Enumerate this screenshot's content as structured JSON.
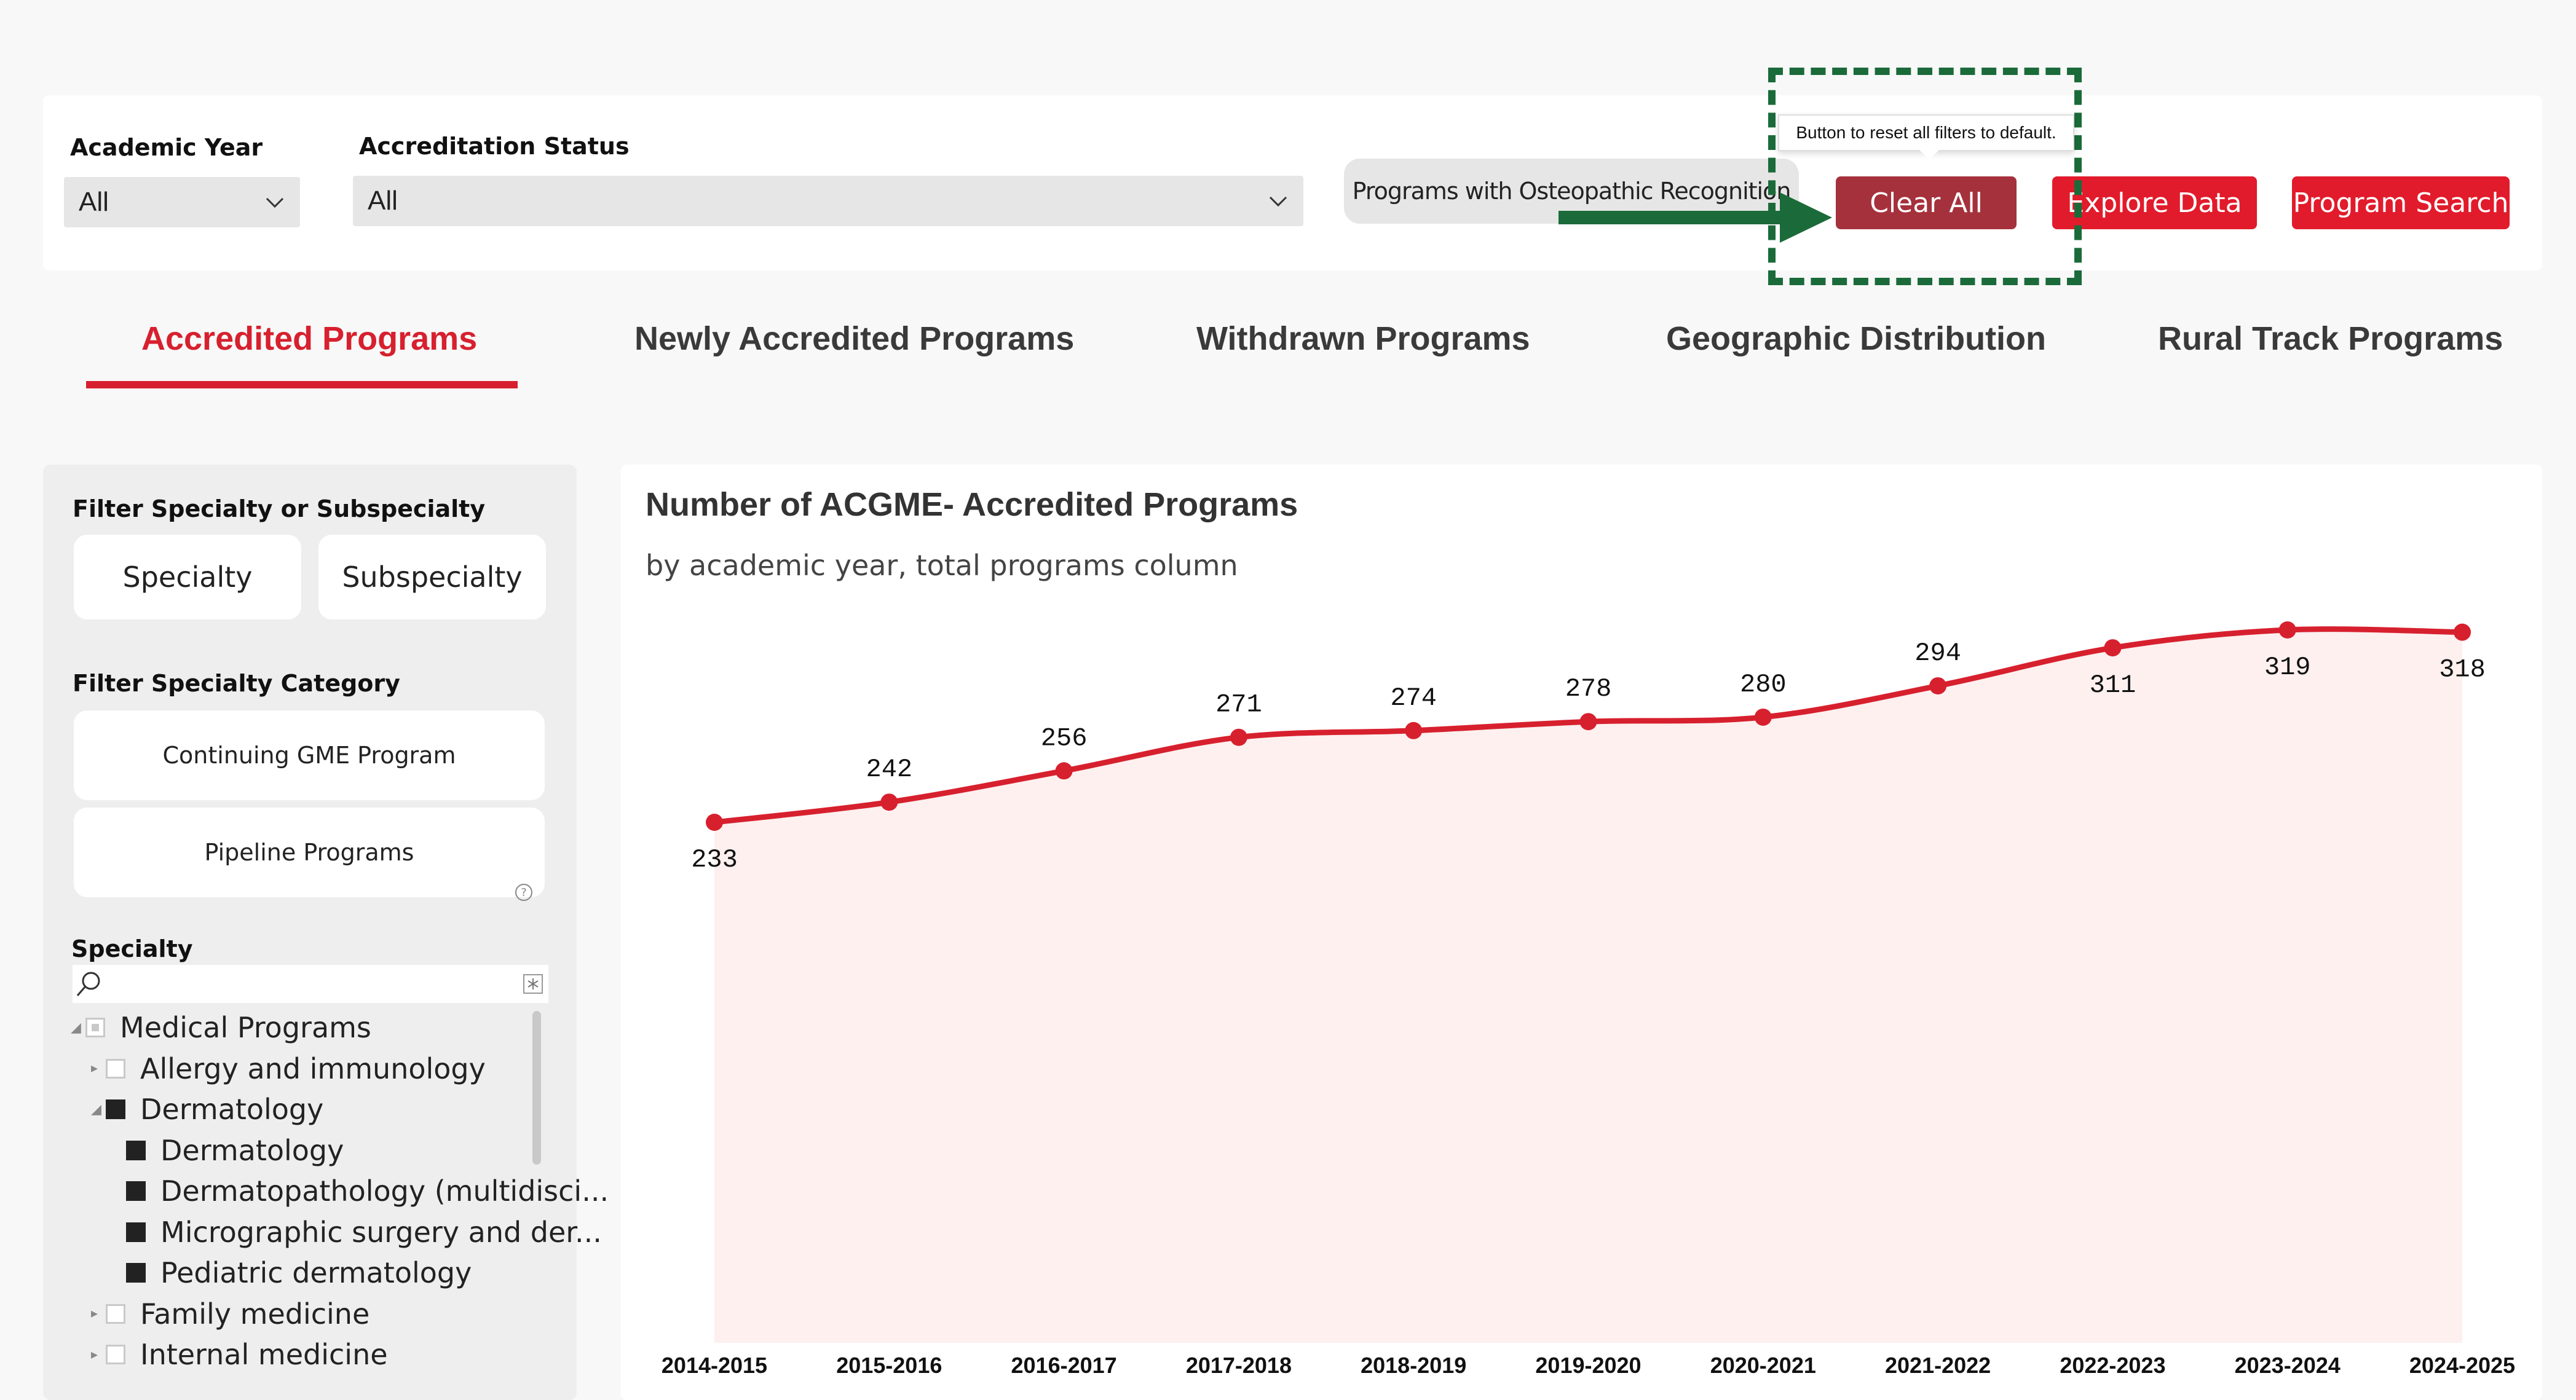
{
  "filters": {
    "academic_year": {
      "label": "Academic Year",
      "value": "All"
    },
    "accreditation_status": {
      "label": "Accreditation Status",
      "value": "All"
    },
    "osteopathic_button": "Programs with Osteopathic Recognition"
  },
  "buttons": {
    "clear_all": "Clear All",
    "explore_data": "Explore Data",
    "program_search": "Program Search",
    "clear_all_tooltip": "Button to reset all filters to default."
  },
  "tabs": [
    {
      "label": "Accredited Programs",
      "active": true
    },
    {
      "label": "Newly Accredited Programs",
      "active": false
    },
    {
      "label": "Withdrawn Programs",
      "active": false
    },
    {
      "label": "Geographic Distribution",
      "active": false
    },
    {
      "label": "Rural Track Programs",
      "active": false
    }
  ],
  "left_panel": {
    "filter_specialty_heading": "Filter Specialty or Subspecialty",
    "specialty_button": "Specialty",
    "subspecialty_button": "Subspecialty",
    "filter_category_heading": "Filter Specialty Category",
    "continuing_gme_button": "Continuing GME Program",
    "pipeline_button": "Pipeline Programs",
    "specialty_heading": "Specialty",
    "tree": [
      {
        "label": "Medical Programs",
        "level": 0,
        "state": "partial",
        "expander": "open"
      },
      {
        "label": "Allergy and immunology",
        "level": 1,
        "state": "empty",
        "expander": "closed"
      },
      {
        "label": "Dermatology",
        "level": 1,
        "state": "full",
        "expander": "open"
      },
      {
        "label": "Dermatology",
        "level": 2,
        "state": "full",
        "expander": "none"
      },
      {
        "label": "Dermatopathology (multidisci...",
        "level": 2,
        "state": "full",
        "expander": "none"
      },
      {
        "label": "Micrographic surgery and der...",
        "level": 2,
        "state": "full",
        "expander": "none"
      },
      {
        "label": "Pediatric dermatology",
        "level": 2,
        "state": "full",
        "expander": "none"
      },
      {
        "label": "Family medicine",
        "level": 1,
        "state": "empty",
        "expander": "closed"
      },
      {
        "label": "Internal medicine",
        "level": 1,
        "state": "empty",
        "expander": "closed"
      }
    ]
  },
  "colors": {
    "accent": "#d7202e",
    "clear_all": "#a5313c",
    "highlight": "#1b6b3a",
    "area_fill": "#fdf0ef"
  },
  "chart_data": {
    "type": "line",
    "title": "Number of ACGME- Accredited Programs",
    "subtitle": "by academic year, total programs column",
    "categories": [
      "2014-2015",
      "2015-2016",
      "2016-2017",
      "2017-2018",
      "2018-2019",
      "2019-2020",
      "2020-2021",
      "2021-2022",
      "2022-2023",
      "2023-2024",
      "2024-2025"
    ],
    "values": [
      233,
      242,
      256,
      271,
      274,
      278,
      280,
      294,
      311,
      319,
      318
    ],
    "label_position": [
      "below",
      "above",
      "above",
      "above",
      "above",
      "above",
      "above",
      "above",
      "below",
      "below",
      "below"
    ],
    "area": true,
    "grid": false,
    "color": "#d7202e"
  }
}
